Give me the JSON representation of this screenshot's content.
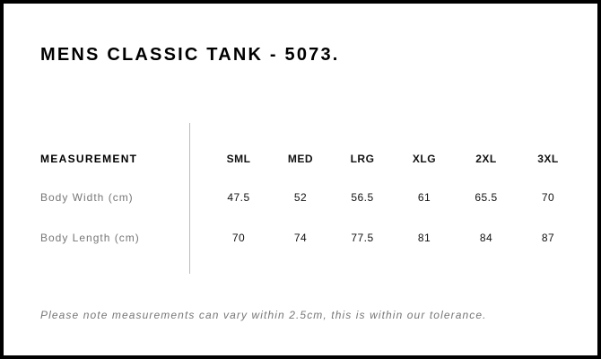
{
  "title": "MENS CLASSIC TANK - 5073.",
  "table": {
    "header_label": "MEASUREMENT",
    "sizes": [
      "SML",
      "MED",
      "LRG",
      "XLG",
      "2XL",
      "3XL"
    ],
    "rows": [
      {
        "label": "Body Width (cm)",
        "values": [
          "47.5",
          "52",
          "56.5",
          "61",
          "65.5",
          "70"
        ]
      },
      {
        "label": "Body Length (cm)",
        "values": [
          "70",
          "74",
          "77.5",
          "81",
          "84",
          "87"
        ]
      }
    ]
  },
  "note": "Please note measurements can vary within 2.5cm, this is within our tolerance."
}
